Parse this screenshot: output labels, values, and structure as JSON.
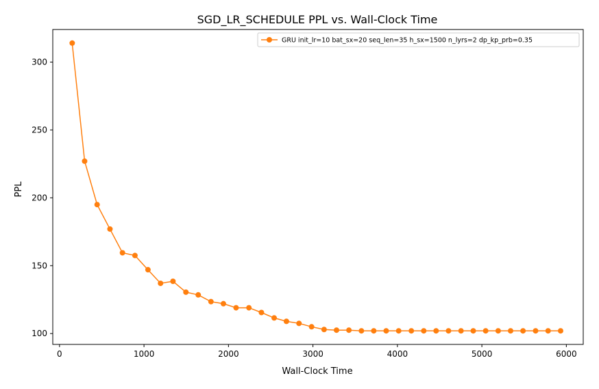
{
  "chart_data": {
    "type": "line",
    "title": "SGD_LR_SCHEDULE PPL vs. Wall-Clock Time",
    "xlabel": "Wall-Clock Time",
    "ylabel": "PPL",
    "xlim": [
      -80,
      6200
    ],
    "ylim": [
      92,
      324
    ],
    "xticks": [
      0,
      1000,
      2000,
      3000,
      4000,
      5000,
      6000
    ],
    "yticks": [
      100,
      150,
      200,
      250,
      300
    ],
    "grid": false,
    "legend_position": "top-right",
    "color": "#ff7f0e",
    "series": [
      {
        "name": "GRU init_lr=10 bat_sx=20 seq_len=35 h_sx=1500 n_lyrs=2 dp_kp_prb=0.35",
        "x": [
          150,
          297,
          445,
          597,
          745,
          893,
          1047,
          1196,
          1343,
          1496,
          1642,
          1793,
          1940,
          2090,
          2242,
          2390,
          2541,
          2686,
          2835,
          2984,
          3132,
          3279,
          3426,
          3574,
          3720,
          3867,
          4015,
          4165,
          4312,
          4458,
          4605,
          4753,
          4898,
          5045,
          5193,
          5340,
          5487,
          5636,
          5784,
          5932
        ],
        "y": [
          314,
          227,
          195,
          177,
          159.5,
          157.5,
          147,
          137,
          138.5,
          130.5,
          128.5,
          123.5,
          122,
          119,
          119,
          115.5,
          111.5,
          109,
          107.5,
          105,
          103,
          102.5,
          102.5,
          102,
          102,
          102,
          102,
          102,
          102,
          102,
          102,
          102,
          102,
          102,
          102,
          102,
          102,
          102,
          102,
          102
        ]
      }
    ]
  }
}
